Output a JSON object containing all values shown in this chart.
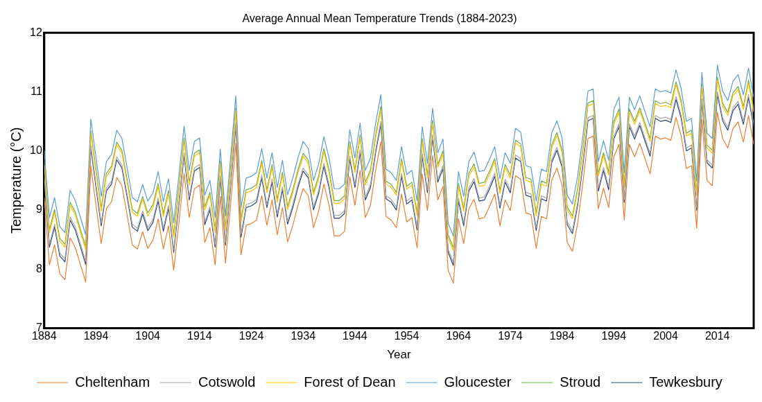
{
  "chart_data": {
    "type": "line",
    "title": "Average Annual Mean Temperature Trends (1884-2023)",
    "xlabel": "Year",
    "ylabel": "Temperature (°C)",
    "x": [
      1884,
      1885,
      1886,
      1887,
      1888,
      1889,
      1890,
      1891,
      1892,
      1893,
      1894,
      1895,
      1896,
      1897,
      1898,
      1899,
      1900,
      1901,
      1902,
      1903,
      1904,
      1905,
      1906,
      1907,
      1908,
      1909,
      1910,
      1911,
      1912,
      1913,
      1914,
      1915,
      1916,
      1917,
      1918,
      1919,
      1920,
      1921,
      1922,
      1923,
      1924,
      1925,
      1926,
      1927,
      1928,
      1929,
      1930,
      1931,
      1932,
      1933,
      1934,
      1935,
      1936,
      1937,
      1938,
      1939,
      1940,
      1941,
      1942,
      1943,
      1944,
      1945,
      1946,
      1947,
      1948,
      1949,
      1950,
      1951,
      1952,
      1953,
      1954,
      1955,
      1956,
      1957,
      1958,
      1959,
      1960,
      1961,
      1962,
      1963,
      1964,
      1965,
      1966,
      1967,
      1968,
      1969,
      1970,
      1971,
      1972,
      1973,
      1974,
      1975,
      1976,
      1977,
      1978,
      1979,
      1980,
      1981,
      1982,
      1983,
      1984,
      1985,
      1986,
      1987,
      1988,
      1989,
      1990,
      1991,
      1992,
      1993,
      1994,
      1995,
      1996,
      1997,
      1998,
      1999,
      2000,
      2001,
      2002,
      2003,
      2004,
      2005,
      2006,
      2007,
      2008,
      2009,
      2010,
      2011,
      2012,
      2013,
      2014,
      2015,
      2016,
      2017,
      2018,
      2019,
      2020,
      2021
    ],
    "series": [
      {
        "name": "Cheltenham",
        "color": "#ed7d31",
        "values": [
          9.21,
          8.07,
          8.41,
          7.92,
          7.82,
          8.53,
          8.36,
          8.07,
          7.78,
          9.74,
          9.08,
          8.43,
          9.02,
          9.14,
          9.55,
          9.41,
          8.92,
          8.41,
          8.34,
          8.63,
          8.35,
          8.49,
          8.85,
          8.34,
          8.73,
          7.98,
          8.78,
          9.62,
          8.87,
          9.36,
          9.42,
          8.45,
          8.7,
          8.07,
          9.23,
          8.1,
          9.1,
          10.13,
          8.24,
          8.74,
          8.77,
          8.83,
          9.24,
          8.74,
          9.17,
          8.58,
          9.04,
          8.46,
          8.74,
          9.08,
          9.36,
          9.24,
          8.7,
          8.98,
          9.44,
          9.08,
          8.56,
          8.56,
          8.64,
          9.56,
          9.08,
          9.67,
          8.87,
          9.08,
          9.67,
          10.15,
          8.89,
          8.83,
          8.7,
          9.27,
          8.8,
          8.87,
          8.36,
          9.61,
          8.99,
          9.92,
          9.17,
          9.4,
          7.98,
          7.76,
          8.85,
          8.43,
          9.02,
          9.18,
          8.85,
          8.87,
          9.06,
          9.27,
          8.73,
          9.17,
          8.99,
          9.58,
          9.52,
          8.95,
          8.92,
          8.35,
          8.89,
          8.85,
          9.5,
          9.71,
          9.42,
          8.45,
          8.3,
          8.77,
          9.44,
          10.21,
          10.25,
          9.02,
          9.37,
          9.04,
          9.9,
          10.11,
          8.83,
          10.11,
          9.9,
          10.13,
          9.87,
          9.61,
          10.25,
          10.2,
          10.22,
          10.18,
          10.57,
          10.25,
          9.7,
          9.75,
          8.69,
          10.53,
          9.5,
          9.41,
          10.65,
          10.21,
          10.05,
          10.38,
          10.49,
          10.15,
          10.6,
          10.11
        ]
      },
      {
        "name": "Cotswold",
        "color": "#a5a5a5",
        "values": [
          9.56,
          8.42,
          8.76,
          8.27,
          8.17,
          8.88,
          8.71,
          8.42,
          8.13,
          10.09,
          9.43,
          8.78,
          9.37,
          9.49,
          9.9,
          9.76,
          9.27,
          8.76,
          8.69,
          8.98,
          8.7,
          8.84,
          9.2,
          8.69,
          9.08,
          8.33,
          9.13,
          9.97,
          9.22,
          9.71,
          9.77,
          8.8,
          9.05,
          8.42,
          9.58,
          8.45,
          9.45,
          10.48,
          8.59,
          9.09,
          9.12,
          9.18,
          9.59,
          9.09,
          9.52,
          8.93,
          9.39,
          8.81,
          9.09,
          9.43,
          9.71,
          9.59,
          9.05,
          9.33,
          9.79,
          9.43,
          8.91,
          8.91,
          8.99,
          9.91,
          9.43,
          10.02,
          9.22,
          9.43,
          10.02,
          10.5,
          9.24,
          9.18,
          9.05,
          9.62,
          9.15,
          9.22,
          8.71,
          9.96,
          9.34,
          10.27,
          9.52,
          9.75,
          8.33,
          8.11,
          9.2,
          8.78,
          9.37,
          9.53,
          9.2,
          9.22,
          9.41,
          9.62,
          9.08,
          9.52,
          9.34,
          9.93,
          9.87,
          9.3,
          9.27,
          8.7,
          9.24,
          9.2,
          9.85,
          10.06,
          9.77,
          8.8,
          8.65,
          9.12,
          9.79,
          10.56,
          10.6,
          9.37,
          9.72,
          9.39,
          10.25,
          10.46,
          9.18,
          10.46,
          10.25,
          10.48,
          10.22,
          9.96,
          10.6,
          10.55,
          10.57,
          10.53,
          10.92,
          10.6,
          10.05,
          10.1,
          9.04,
          10.88,
          9.85,
          9.76,
          11.0,
          10.56,
          10.4,
          10.73,
          10.84,
          10.5,
          10.95,
          10.46
        ]
      },
      {
        "name": "Forest of Dean",
        "color": "#ffc000",
        "values": [
          9.76,
          8.62,
          8.96,
          8.47,
          8.37,
          9.08,
          8.91,
          8.62,
          8.33,
          10.29,
          9.63,
          8.98,
          9.57,
          9.69,
          10.1,
          9.96,
          9.47,
          8.96,
          8.89,
          9.18,
          8.9,
          9.04,
          9.4,
          8.89,
          9.28,
          8.53,
          9.33,
          10.17,
          9.42,
          9.91,
          9.97,
          9.0,
          9.25,
          8.62,
          9.78,
          8.65,
          9.65,
          10.68,
          8.79,
          9.29,
          9.32,
          9.38,
          9.79,
          9.29,
          9.72,
          9.13,
          9.59,
          9.01,
          9.29,
          9.63,
          9.91,
          9.79,
          9.25,
          9.53,
          9.99,
          9.63,
          9.11,
          9.11,
          9.19,
          10.11,
          9.63,
          10.22,
          9.42,
          9.63,
          10.22,
          10.7,
          9.44,
          9.38,
          9.25,
          9.82,
          9.35,
          9.42,
          8.91,
          10.16,
          9.54,
          10.47,
          9.72,
          9.95,
          8.53,
          8.31,
          9.4,
          8.98,
          9.57,
          9.73,
          9.4,
          9.42,
          9.61,
          9.82,
          9.28,
          9.72,
          9.54,
          10.13,
          10.07,
          9.5,
          9.47,
          8.9,
          9.44,
          9.4,
          10.05,
          10.26,
          9.97,
          9.0,
          8.85,
          9.32,
          9.99,
          10.76,
          10.8,
          9.57,
          9.92,
          9.59,
          10.45,
          10.66,
          9.38,
          10.66,
          10.45,
          10.68,
          10.42,
          10.16,
          10.8,
          10.75,
          10.77,
          10.73,
          11.12,
          10.8,
          10.25,
          10.3,
          9.24,
          11.08,
          10.05,
          9.96,
          11.2,
          10.76,
          10.6,
          10.93,
          11.04,
          10.7,
          11.15,
          10.66
        ]
      },
      {
        "name": "Gloucester",
        "color": "#5b9bd5",
        "values": [
          10.01,
          8.87,
          9.21,
          8.72,
          8.62,
          9.33,
          9.16,
          8.87,
          8.58,
          10.54,
          9.88,
          9.23,
          9.82,
          9.94,
          10.35,
          10.21,
          9.72,
          9.21,
          9.14,
          9.43,
          9.15,
          9.29,
          9.65,
          9.14,
          9.53,
          8.78,
          9.58,
          10.42,
          9.67,
          10.16,
          10.22,
          9.25,
          9.5,
          8.87,
          10.03,
          8.9,
          9.9,
          10.93,
          9.04,
          9.54,
          9.57,
          9.63,
          10.04,
          9.54,
          9.97,
          9.38,
          9.84,
          9.26,
          9.54,
          9.88,
          10.16,
          10.04,
          9.5,
          9.78,
          10.24,
          9.88,
          9.36,
          9.36,
          9.44,
          10.36,
          9.88,
          10.47,
          9.67,
          9.88,
          10.47,
          10.95,
          9.69,
          9.63,
          9.5,
          10.07,
          9.6,
          9.67,
          9.16,
          10.41,
          9.79,
          10.72,
          9.97,
          10.2,
          8.78,
          8.56,
          9.65,
          9.23,
          9.82,
          9.98,
          9.65,
          9.67,
          9.86,
          10.07,
          9.53,
          9.97,
          9.79,
          10.38,
          10.32,
          9.75,
          9.72,
          9.15,
          9.69,
          9.65,
          10.3,
          10.51,
          10.22,
          9.25,
          9.1,
          9.57,
          10.24,
          11.01,
          11.05,
          9.82,
          10.17,
          9.84,
          10.7,
          10.91,
          9.63,
          10.91,
          10.7,
          10.93,
          10.67,
          10.41,
          11.05,
          11.0,
          11.02,
          10.98,
          11.37,
          11.05,
          10.5,
          10.55,
          9.49,
          11.33,
          10.3,
          10.21,
          11.45,
          11.01,
          10.85,
          11.18,
          11.29,
          10.95,
          11.4,
          10.91
        ]
      },
      {
        "name": "Stroud",
        "color": "#70ad47",
        "values": [
          9.81,
          8.67,
          9.01,
          8.52,
          8.42,
          9.13,
          8.96,
          8.67,
          8.38,
          10.34,
          9.68,
          9.03,
          9.62,
          9.74,
          10.15,
          10.01,
          9.52,
          9.01,
          8.94,
          9.23,
          8.95,
          9.09,
          9.45,
          8.94,
          9.33,
          8.58,
          9.38,
          10.22,
          9.47,
          9.96,
          10.02,
          9.05,
          9.3,
          8.67,
          9.83,
          8.7,
          9.7,
          10.73,
          8.84,
          9.34,
          9.37,
          9.43,
          9.84,
          9.34,
          9.77,
          9.18,
          9.64,
          9.06,
          9.34,
          9.68,
          9.96,
          9.84,
          9.3,
          9.58,
          10.04,
          9.68,
          9.16,
          9.16,
          9.24,
          10.16,
          9.68,
          10.27,
          9.47,
          9.68,
          10.27,
          10.75,
          9.49,
          9.43,
          9.3,
          9.87,
          9.4,
          9.47,
          8.96,
          10.21,
          9.59,
          10.52,
          9.77,
          10.0,
          8.58,
          8.36,
          9.45,
          9.03,
          9.62,
          9.78,
          9.45,
          9.47,
          9.66,
          9.87,
          9.33,
          9.77,
          9.59,
          10.18,
          10.12,
          9.55,
          9.52,
          8.95,
          9.49,
          9.45,
          10.1,
          10.31,
          10.02,
          9.05,
          8.9,
          9.37,
          10.04,
          10.81,
          10.85,
          9.62,
          9.97,
          9.64,
          10.5,
          10.71,
          9.43,
          10.71,
          10.5,
          10.73,
          10.47,
          10.21,
          10.85,
          10.8,
          10.82,
          10.78,
          11.17,
          10.85,
          10.3,
          10.35,
          9.29,
          11.13,
          10.1,
          10.01,
          11.25,
          10.81,
          10.65,
          10.98,
          11.09,
          10.75,
          11.2,
          10.71
        ]
      },
      {
        "name": "Tewkesbury",
        "color": "#264478",
        "values": [
          9.51,
          8.37,
          8.71,
          8.22,
          8.12,
          8.83,
          8.66,
          8.37,
          8.08,
          10.04,
          9.38,
          8.73,
          9.32,
          9.44,
          9.85,
          9.71,
          9.22,
          8.71,
          8.64,
          8.93,
          8.65,
          8.79,
          9.15,
          8.64,
          9.03,
          8.28,
          9.08,
          9.92,
          9.17,
          9.66,
          9.72,
          8.75,
          9.0,
          8.37,
          9.53,
          8.4,
          9.4,
          10.43,
          8.54,
          9.04,
          9.07,
          9.13,
          9.54,
          9.04,
          9.47,
          8.88,
          9.34,
          8.76,
          9.04,
          9.38,
          9.66,
          9.54,
          9.0,
          9.28,
          9.74,
          9.38,
          8.86,
          8.86,
          8.94,
          9.86,
          9.38,
          9.97,
          9.17,
          9.38,
          9.97,
          10.45,
          9.19,
          9.13,
          9.0,
          9.57,
          9.1,
          9.17,
          8.66,
          9.91,
          9.29,
          10.22,
          9.47,
          9.7,
          8.28,
          8.06,
          9.15,
          8.73,
          9.32,
          9.48,
          9.15,
          9.17,
          9.36,
          9.57,
          9.03,
          9.47,
          9.29,
          9.88,
          9.82,
          9.25,
          9.22,
          8.65,
          9.19,
          9.15,
          9.8,
          10.01,
          9.72,
          8.75,
          8.6,
          9.07,
          9.74,
          10.51,
          10.55,
          9.32,
          9.67,
          9.34,
          10.2,
          10.41,
          9.13,
          10.41,
          10.2,
          10.43,
          10.17,
          9.91,
          10.55,
          10.5,
          10.52,
          10.48,
          10.87,
          10.55,
          10.0,
          10.05,
          8.99,
          10.83,
          9.8,
          9.71,
          10.95,
          10.51,
          10.35,
          10.68,
          10.79,
          10.45,
          10.9,
          10.41
        ]
      }
    ],
    "xlim": [
      1884,
      2021
    ],
    "xticks": [
      1884,
      1894,
      1904,
      1914,
      1924,
      1934,
      1944,
      1954,
      1964,
      1974,
      1984,
      1994,
      2004,
      2014
    ],
    "ylim": [
      7,
      12
    ],
    "yticks": [
      7,
      8,
      9,
      10,
      11,
      12
    ],
    "grid": false,
    "legend": "bottom",
    "marker": "none",
    "line_style": "solid"
  }
}
